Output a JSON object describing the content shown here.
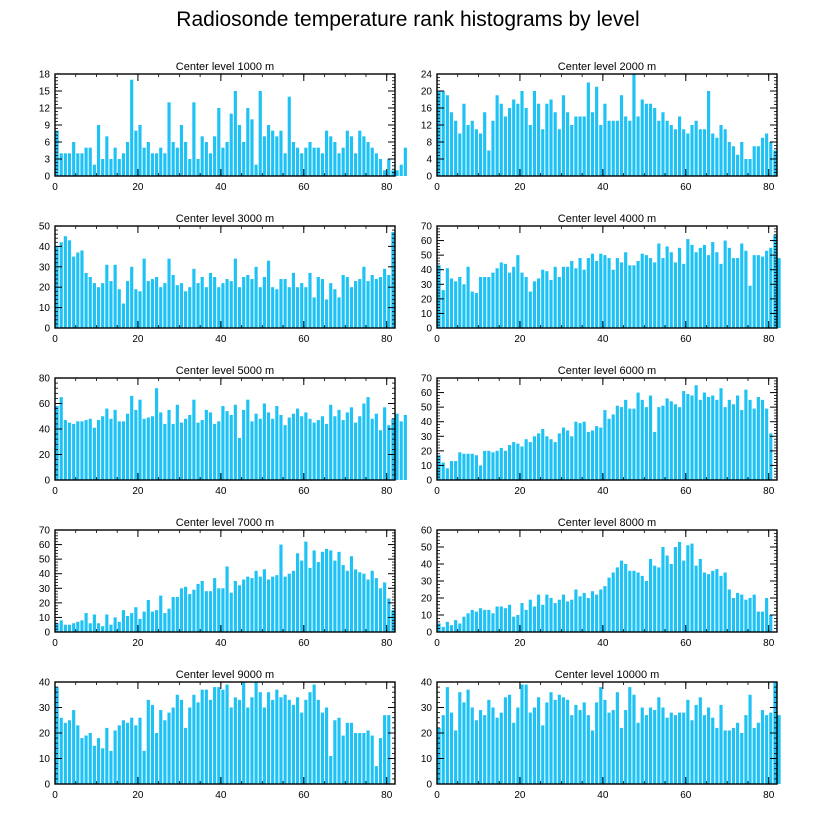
{
  "page": {
    "title": "Radiosonde temperature rank histograms by level",
    "bar_color": "#1ec2f4",
    "axis_color": "#000000"
  },
  "chart_data": [
    {
      "type": "bar",
      "title": "Center level 1000 m",
      "xlabel": "",
      "ylabel": "",
      "xlim": [
        0,
        82
      ],
      "ylim": [
        0,
        18
      ],
      "xticks": [
        0,
        20,
        40,
        60,
        80
      ],
      "yticks": [
        0,
        3,
        6,
        9,
        12,
        15,
        18
      ],
      "grid": false,
      "x_start": 0,
      "values": [
        8,
        4,
        4,
        4,
        6,
        4,
        4,
        5,
        5,
        2,
        9,
        3,
        7,
        3,
        5,
        3,
        4,
        6,
        17,
        8,
        9,
        5,
        6,
        4,
        4,
        5,
        4,
        13,
        6,
        5,
        9,
        6,
        3,
        13,
        3,
        7,
        6,
        4,
        7,
        12,
        5,
        6,
        11,
        15,
        9,
        6,
        12,
        10,
        2,
        15,
        7,
        9,
        8,
        7,
        8,
        4,
        14,
        6,
        5,
        4,
        5,
        6,
        5,
        5,
        4,
        8,
        7,
        6,
        4,
        5,
        8,
        7,
        4,
        8,
        7,
        6,
        5,
        4,
        3,
        1,
        3,
        1,
        1,
        2,
        5
      ]
    },
    {
      "type": "bar",
      "title": "Center level 2000 m",
      "xlabel": "",
      "ylabel": "",
      "xlim": [
        0,
        82
      ],
      "ylim": [
        0,
        24
      ],
      "xticks": [
        0,
        20,
        40,
        60,
        80
      ],
      "yticks": [
        0,
        4,
        8,
        12,
        16,
        20,
        24
      ],
      "grid": false,
      "x_start": 0,
      "values": [
        20,
        20,
        19,
        15,
        13,
        10,
        17,
        12,
        13,
        11,
        10,
        15,
        6,
        13,
        19,
        17,
        14,
        16,
        18,
        17,
        20,
        16,
        12,
        20,
        17,
        11,
        17,
        18,
        15,
        11,
        19,
        15,
        12,
        14,
        14,
        14,
        22,
        15,
        21,
        12,
        17,
        13,
        13,
        13,
        19,
        14,
        13,
        24,
        14,
        18,
        17,
        17,
        16,
        13,
        15,
        13,
        12,
        11,
        14,
        11,
        10,
        12,
        13,
        11,
        11,
        20,
        10,
        9,
        12,
        11,
        8,
        7,
        5,
        8,
        4,
        4,
        7,
        7,
        9,
        10,
        8,
        6
      ]
    },
    {
      "type": "bar",
      "title": "Center level 3000 m",
      "xlabel": "",
      "ylabel": "",
      "xlim": [
        0,
        82
      ],
      "ylim": [
        0,
        50
      ],
      "xticks": [
        0,
        20,
        40,
        60,
        80
      ],
      "yticks": [
        0,
        10,
        20,
        30,
        40,
        50
      ],
      "grid": false,
      "x_start": 0,
      "values": [
        40,
        42,
        45,
        43,
        35,
        37,
        38,
        27,
        25,
        22,
        20,
        22,
        31,
        23,
        31,
        19,
        12,
        23,
        30,
        19,
        18,
        34,
        23,
        24,
        25,
        20,
        22,
        34,
        26,
        21,
        22,
        18,
        20,
        29,
        22,
        25,
        20,
        27,
        25,
        20,
        22,
        24,
        23,
        34,
        20,
        25,
        26,
        24,
        30,
        20,
        25,
        33,
        20,
        19,
        24,
        24,
        20,
        27,
        20,
        22,
        20,
        27,
        15,
        25,
        24,
        14,
        22,
        19,
        15,
        26,
        25,
        20,
        23,
        24,
        30,
        23,
        26,
        24,
        25,
        29,
        26,
        47
      ]
    },
    {
      "type": "bar",
      "title": "Center level 4000 m",
      "xlabel": "",
      "ylabel": "",
      "xlim": [
        0,
        82
      ],
      "ylim": [
        0,
        70
      ],
      "xticks": [
        0,
        20,
        40,
        60,
        80
      ],
      "yticks": [
        0,
        10,
        20,
        30,
        40,
        50,
        60,
        70
      ],
      "grid": false,
      "x_start": 0,
      "values": [
        43,
        26,
        41,
        34,
        32,
        35,
        30,
        42,
        25,
        24,
        35,
        35,
        35,
        38,
        41,
        45,
        44,
        38,
        42,
        50,
        38,
        35,
        25,
        32,
        34,
        40,
        39,
        33,
        42,
        35,
        42,
        42,
        46,
        41,
        48,
        40,
        48,
        51,
        46,
        51,
        50,
        48,
        40,
        48,
        45,
        52,
        43,
        43,
        46,
        51,
        50,
        48,
        45,
        58,
        48,
        56,
        52,
        45,
        55,
        44,
        61,
        57,
        52,
        55,
        57,
        50,
        59,
        52,
        44,
        60,
        55,
        48,
        48,
        58,
        53,
        29,
        50,
        50,
        49,
        53,
        55,
        64,
        48
      ]
    },
    {
      "type": "bar",
      "title": "Center level 5000 m",
      "xlabel": "",
      "ylabel": "",
      "xlim": [
        0,
        82
      ],
      "ylim": [
        0,
        80
      ],
      "xticks": [
        0,
        20,
        40,
        60,
        80
      ],
      "yticks": [
        0,
        20,
        40,
        60,
        80
      ],
      "grid": false,
      "x_start": 0,
      "values": [
        58,
        65,
        47,
        45,
        44,
        46,
        46,
        47,
        48,
        41,
        47,
        50,
        56,
        48,
        55,
        46,
        46,
        52,
        66,
        55,
        63,
        48,
        49,
        50,
        72,
        53,
        44,
        55,
        44,
        59,
        45,
        48,
        51,
        63,
        45,
        47,
        55,
        53,
        44,
        46,
        58,
        54,
        51,
        59,
        33,
        55,
        63,
        46,
        52,
        48,
        60,
        53,
        48,
        58,
        51,
        43,
        49,
        52,
        56,
        50,
        53,
        48,
        45,
        47,
        50,
        44,
        59,
        50,
        55,
        47,
        53,
        57,
        45,
        50,
        60,
        65,
        48,
        52,
        39,
        57,
        43,
        48,
        52,
        46,
        51
      ]
    },
    {
      "type": "bar",
      "title": "Center level 6000 m",
      "xlabel": "",
      "ylabel": "",
      "xlim": [
        0,
        82
      ],
      "ylim": [
        0,
        70
      ],
      "xticks": [
        0,
        20,
        40,
        60,
        80
      ],
      "yticks": [
        0,
        10,
        20,
        30,
        40,
        50,
        60,
        70
      ],
      "grid": false,
      "x_start": 0,
      "values": [
        17,
        12,
        8,
        13,
        13,
        19,
        18,
        18,
        18,
        17,
        10,
        20,
        20,
        19,
        20,
        22,
        20,
        24,
        26,
        25,
        23,
        28,
        26,
        30,
        32,
        35,
        30,
        28,
        26,
        32,
        36,
        34,
        30,
        40,
        39,
        40,
        33,
        34,
        37,
        36,
        48,
        42,
        45,
        51,
        50,
        55,
        49,
        49,
        60,
        55,
        50,
        58,
        33,
        50,
        51,
        56,
        54,
        52,
        50,
        61,
        59,
        58,
        65,
        55,
        60,
        57,
        58,
        55,
        63,
        50,
        55,
        52,
        58,
        48,
        62,
        55,
        49,
        57,
        55,
        49,
        32
      ]
    },
    {
      "type": "bar",
      "title": "Center level 7000 m",
      "xlabel": "",
      "ylabel": "",
      "xlim": [
        0,
        82
      ],
      "ylim": [
        0,
        70
      ],
      "xticks": [
        0,
        20,
        40,
        60,
        80
      ],
      "yticks": [
        0,
        10,
        20,
        30,
        40,
        50,
        60,
        70
      ],
      "grid": false,
      "x_start": 0,
      "values": [
        6,
        8,
        5,
        5,
        6,
        7,
        8,
        13,
        6,
        12,
        6,
        4,
        12,
        5,
        10,
        7,
        15,
        11,
        13,
        17,
        9,
        14,
        22,
        14,
        15,
        25,
        13,
        16,
        24,
        24,
        30,
        31,
        26,
        29,
        33,
        35,
        28,
        28,
        37,
        30,
        30,
        45,
        27,
        35,
        32,
        36,
        38,
        37,
        42,
        38,
        43,
        36,
        38,
        39,
        60,
        38,
        40,
        42,
        54,
        49,
        62,
        44,
        56,
        48,
        55,
        57,
        56,
        49,
        55,
        46,
        42,
        52,
        43,
        41,
        40,
        36,
        42,
        37,
        30,
        34,
        23,
        15
      ]
    },
    {
      "type": "bar",
      "title": "Center level 8000 m",
      "xlabel": "",
      "ylabel": "",
      "xlim": [
        0,
        82
      ],
      "ylim": [
        0,
        60
      ],
      "xticks": [
        0,
        20,
        40,
        60,
        80
      ],
      "yticks": [
        0,
        10,
        20,
        30,
        40,
        50,
        60
      ],
      "grid": false,
      "x_start": 0,
      "values": [
        5,
        3,
        6,
        4,
        7,
        5,
        9,
        11,
        13,
        12,
        14,
        13,
        13,
        11,
        15,
        15,
        14,
        16,
        9,
        10,
        17,
        13,
        19,
        15,
        22,
        16,
        22,
        20,
        17,
        19,
        22,
        18,
        19,
        25,
        21,
        23,
        20,
        24,
        22,
        25,
        27,
        32,
        35,
        38,
        42,
        40,
        36,
        36,
        35,
        33,
        30,
        43,
        39,
        38,
        50,
        45,
        40,
        50,
        53,
        42,
        51,
        52,
        39,
        43,
        35,
        34,
        36,
        37,
        33,
        35,
        25,
        20,
        23,
        22,
        19,
        20,
        22,
        12,
        12,
        20,
        10
      ]
    },
    {
      "type": "bar",
      "title": "Center level 9000 m",
      "xlabel": "",
      "ylabel": "",
      "xlim": [
        0,
        82
      ],
      "ylim": [
        0,
        40
      ],
      "xticks": [
        0,
        20,
        40,
        60,
        80
      ],
      "yticks": [
        0,
        10,
        20,
        30,
        40
      ],
      "grid": false,
      "x_start": 0,
      "values": [
        38,
        26,
        24,
        25,
        29,
        23,
        18,
        19,
        20,
        15,
        18,
        14,
        22,
        13,
        21,
        23,
        25,
        24,
        26,
        23,
        26,
        13,
        33,
        31,
        20,
        29,
        25,
        28,
        30,
        35,
        33,
        22,
        30,
        35,
        32,
        37,
        37,
        33,
        38,
        38,
        37,
        39,
        30,
        34,
        33,
        40,
        30,
        34,
        40,
        36,
        30,
        36,
        33,
        37,
        34,
        35,
        33,
        31,
        34,
        28,
        33,
        36,
        39,
        33,
        28,
        30,
        11,
        25,
        26,
        19,
        24,
        24,
        20,
        20,
        20,
        21,
        19,
        7,
        18,
        27,
        27
      ]
    },
    {
      "type": "bar",
      "title": "Center level 10000 m",
      "xlabel": "",
      "ylabel": "",
      "xlim": [
        0,
        82
      ],
      "ylim": [
        0,
        40
      ],
      "xticks": [
        0,
        20,
        40,
        60,
        80
      ],
      "yticks": [
        0,
        10,
        20,
        30,
        40
      ],
      "grid": false,
      "x_start": 0,
      "values": [
        22,
        27,
        38,
        28,
        21,
        36,
        32,
        37,
        30,
        25,
        29,
        27,
        33,
        30,
        26,
        28,
        34,
        35,
        24,
        30,
        39,
        39,
        28,
        30,
        34,
        23,
        32,
        36,
        33,
        35,
        34,
        33,
        27,
        31,
        29,
        32,
        27,
        21,
        32,
        38,
        33,
        28,
        29,
        36,
        22,
        29,
        38,
        35,
        24,
        30,
        27,
        30,
        29,
        34,
        30,
        26,
        28,
        27,
        28,
        28,
        33,
        25,
        31,
        34,
        27,
        30,
        26,
        22,
        31,
        21,
        21,
        22,
        24,
        20,
        27,
        35,
        22,
        24,
        29,
        27,
        28,
        40,
        27
      ]
    }
  ]
}
